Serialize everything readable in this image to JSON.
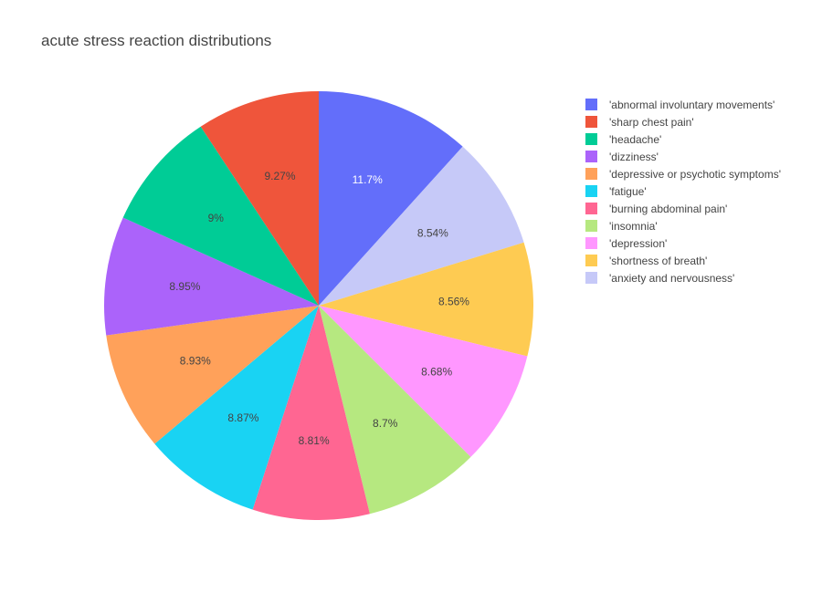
{
  "chart_data": {
    "type": "pie",
    "title": "acute stress reaction distributions",
    "direction": "clockwise",
    "start_angle_degrees": 90,
    "legend_placement": "right",
    "slices": [
      {
        "label": "'abnormal involuntary movements'",
        "value": 11.7,
        "text": "11.7%",
        "color": "#636efa",
        "text_color": "#ffffff"
      },
      {
        "label": "'anxiety and nervousness'",
        "value": 8.54,
        "text": "8.54%",
        "color": "#c6c9f8",
        "text_color": "#444444"
      },
      {
        "label": "'shortness of breath'",
        "value": 8.56,
        "text": "8.56%",
        "color": "#fecb52",
        "text_color": "#444444"
      },
      {
        "label": "'depression'",
        "value": 8.68,
        "text": "8.68%",
        "color": "#ff97ff",
        "text_color": "#444444"
      },
      {
        "label": "'insomnia'",
        "value": 8.7,
        "text": "8.7%",
        "color": "#b6e880",
        "text_color": "#444444"
      },
      {
        "label": "'burning abdominal pain'",
        "value": 8.81,
        "text": "8.81%",
        "color": "#ff6692",
        "text_color": "#444444"
      },
      {
        "label": "'fatigue'",
        "value": 8.87,
        "text": "8.87%",
        "color": "#19d3f3",
        "text_color": "#444444"
      },
      {
        "label": "'depressive or psychotic symptoms'",
        "value": 8.93,
        "text": "8.93%",
        "color": "#ffa15a",
        "text_color": "#444444"
      },
      {
        "label": "'dizziness'",
        "value": 8.95,
        "text": "8.95%",
        "color": "#ab63fa",
        "text_color": "#444444"
      },
      {
        "label": "'headache'",
        "value": 9.0,
        "text": "9%",
        "color": "#00cc96",
        "text_color": "#444444"
      },
      {
        "label": "'sharp chest pain'",
        "value": 9.27,
        "text": "9.27%",
        "color": "#ef553b",
        "text_color": "#444444"
      }
    ],
    "legend": [
      {
        "label": "'abnormal involuntary movements'",
        "color": "#636efa"
      },
      {
        "label": "'sharp chest pain'",
        "color": "#ef553b"
      },
      {
        "label": "'headache'",
        "color": "#00cc96"
      },
      {
        "label": "'dizziness'",
        "color": "#ab63fa"
      },
      {
        "label": "'depressive or psychotic symptoms'",
        "color": "#ffa15a"
      },
      {
        "label": "'fatigue'",
        "color": "#19d3f3"
      },
      {
        "label": "'burning abdominal pain'",
        "color": "#ff6692"
      },
      {
        "label": "'insomnia'",
        "color": "#b6e880"
      },
      {
        "label": "'depression'",
        "color": "#ff97ff"
      },
      {
        "label": "'shortness of breath'",
        "color": "#fecb52"
      },
      {
        "label": "'anxiety and nervousness'",
        "color": "#c6c9f8"
      }
    ]
  }
}
